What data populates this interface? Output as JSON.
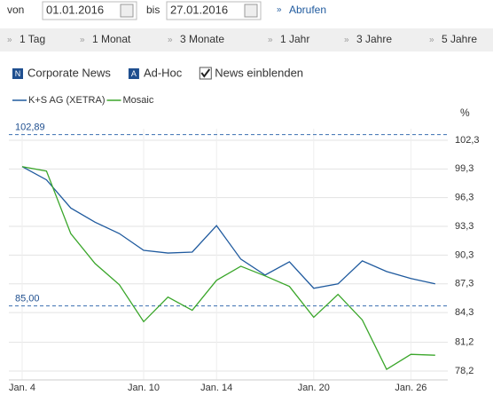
{
  "filter": {
    "from_label": "von",
    "from": "01.01.2016",
    "to_label": "bis",
    "to": "27.01.2016",
    "submit": "Abrufen"
  },
  "ranges": [
    "1 Tag",
    "1 Monat",
    "3 Monate",
    "1 Jahr",
    "3 Jahre",
    "5 Jahre"
  ],
  "options": [
    {
      "icon": "N",
      "label": "Corporate News"
    },
    {
      "icon": "A",
      "label": "Ad-Hoc"
    },
    {
      "label": "News einblenden",
      "checked": true
    }
  ],
  "chart_data": {
    "type": "line",
    "y_label": "%",
    "categories": [
      "Jan. 4",
      null,
      null,
      null,
      null,
      "Jan. 10",
      null,
      null,
      "Jan. 14",
      null,
      null,
      null,
      "Jan. 20",
      null,
      null,
      null,
      "Jan. 26",
      null
    ],
    "series": [
      {
        "name": "K+S AG (XETRA)",
        "color": "#1f5a9e",
        "values": [
          99.54,
          98.16,
          95.22,
          93.74,
          92.55,
          90.8,
          90.52,
          90.62,
          93.38,
          89.88,
          88.22,
          89.6,
          86.84,
          87.3,
          89.7,
          88.59,
          87.86,
          87.3
        ]
      },
      {
        "name": "Mosaic",
        "color": "#3aa62a",
        "values": [
          99.54,
          99.08,
          92.55,
          89.42,
          87.21,
          83.35,
          85.92,
          84.54,
          87.67,
          89.14,
          88.13,
          87.03,
          83.81,
          86.2,
          83.53,
          78.38,
          79.94,
          79.85
        ]
      }
    ],
    "ylim": [
      77.27,
      103.5
    ],
    "yticks": [
      {
        "value": 102.3,
        "label": "102,3"
      },
      {
        "value": 99.3,
        "label": "99,3"
      },
      {
        "value": 96.3,
        "label": "96,3"
      },
      {
        "value": 93.3,
        "label": "93,3"
      },
      {
        "value": 90.3,
        "label": "90,3"
      },
      {
        "value": 87.3,
        "label": "87,3"
      },
      {
        "value": 84.3,
        "label": "84,3"
      },
      {
        "value": 81.2,
        "label": "81,2"
      },
      {
        "value": 78.2,
        "label": "78,2"
      }
    ],
    "reference_lines": [
      {
        "value": 102.89,
        "label": "102,89"
      },
      {
        "value": 85,
        "label": "85,00"
      }
    ],
    "grid": true
  }
}
